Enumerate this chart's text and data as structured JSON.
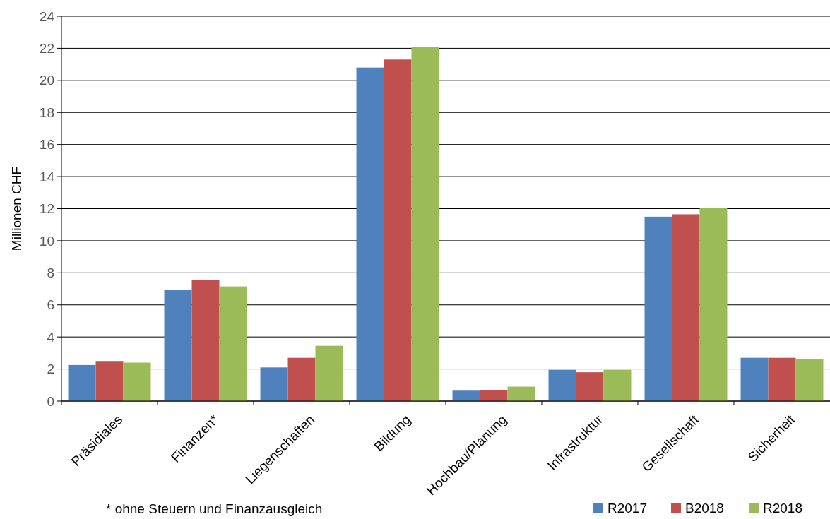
{
  "chart_data": {
    "type": "bar",
    "ylabel": "Millionen CHF",
    "categories": [
      "Präsidiales",
      "Finanzen*",
      "Liegenschaften",
      "Bildung",
      "Hochbau/Planung",
      "Infrastruktur",
      "Gesellschaft",
      "Sicherheit"
    ],
    "series": [
      {
        "name": "R2017",
        "color": "#4f81bd",
        "values": [
          2.25,
          6.95,
          2.1,
          20.8,
          0.65,
          1.95,
          11.5,
          2.7
        ]
      },
      {
        "name": "B2018",
        "color": "#c0504d",
        "values": [
          2.5,
          7.55,
          2.7,
          21.3,
          0.7,
          1.8,
          11.65,
          2.7
        ]
      },
      {
        "name": "R2018",
        "color": "#9bbb59",
        "values": [
          2.4,
          7.15,
          3.45,
          22.1,
          0.9,
          1.95,
          12.05,
          2.6
        ]
      }
    ],
    "ylim": [
      0,
      24
    ],
    "yticks": [
      0,
      2,
      4,
      6,
      8,
      10,
      12,
      14,
      16,
      18,
      20,
      22,
      24
    ],
    "grid": "y",
    "legend": "bottom right",
    "annotations": [
      "* ohne Steuern und Finanzausgleich"
    ]
  }
}
